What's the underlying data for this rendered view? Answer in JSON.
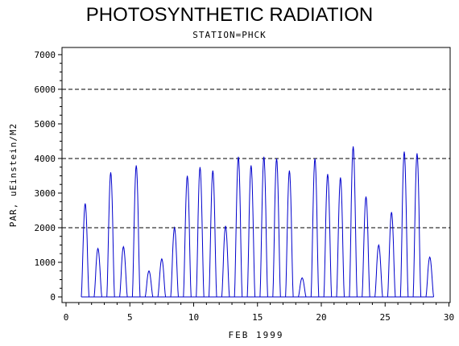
{
  "chart_data": {
    "type": "line",
    "title": "PHOTOSYNTHETIC RADIATION",
    "subtitle": "STATION=PHCK",
    "xlabel": "FEB 1999",
    "ylabel": "PAR, uEinstein/M2",
    "xlim": [
      0,
      30
    ],
    "ylim": [
      0,
      7000
    ],
    "x_ticks": [
      0,
      5,
      10,
      15,
      20,
      25,
      30
    ],
    "y_ticks": [
      0,
      1000,
      2000,
      3000,
      4000,
      5000,
      6000,
      7000
    ],
    "reference_lines": [
      2000,
      4000,
      6000
    ],
    "grid": false,
    "series": [
      {
        "color": "#0000cc",
        "daily_peaks": [
          [
            1.5,
            2700
          ],
          [
            2.5,
            1400
          ],
          [
            3.5,
            3600
          ],
          [
            4.5,
            1450
          ],
          [
            5.5,
            3800
          ],
          [
            6.5,
            750
          ],
          [
            7.5,
            1100
          ],
          [
            8.5,
            2000
          ],
          [
            9.5,
            3500
          ],
          [
            10.5,
            3750
          ],
          [
            11.5,
            3650
          ],
          [
            12.5,
            2050
          ],
          [
            13.5,
            4050
          ],
          [
            14.5,
            3800
          ],
          [
            15.5,
            4050
          ],
          [
            16.5,
            4000
          ],
          [
            17.5,
            3650
          ],
          [
            18.5,
            550
          ],
          [
            19.5,
            4000
          ],
          [
            20.5,
            3550
          ],
          [
            21.5,
            3450
          ],
          [
            22.5,
            4350
          ],
          [
            23.5,
            2900
          ],
          [
            24.5,
            1500
          ],
          [
            25.5,
            2450
          ],
          [
            26.5,
            4200
          ],
          [
            27.5,
            4150
          ],
          [
            28.5,
            1150
          ]
        ]
      }
    ]
  }
}
